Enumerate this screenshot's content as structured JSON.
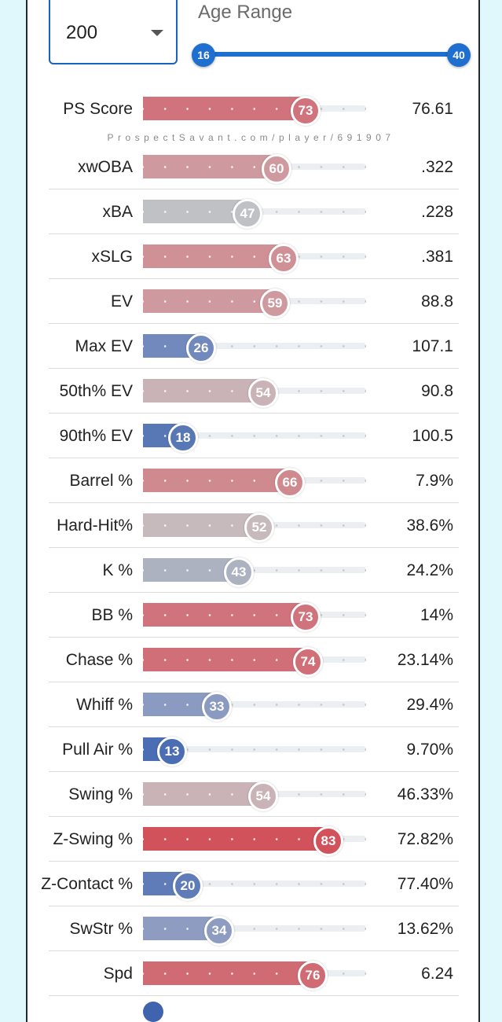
{
  "filter": {
    "selected": "200"
  },
  "age_range": {
    "label": "Age Range",
    "min": "16",
    "max": "40"
  },
  "watermark": "ProspectSavant.com/player/691907",
  "metrics": [
    {
      "label": "PS Score",
      "percentile": "73",
      "value": "76.61",
      "color": "#d0737c"
    },
    {
      "label": "xwOBA",
      "percentile": "60",
      "value": ".322",
      "color": "#cf9a9f"
    },
    {
      "label": "xBA",
      "percentile": "47",
      "value": ".228",
      "color": "#bfc1c5"
    },
    {
      "label": "xSLG",
      "percentile": "63",
      "value": ".381",
      "color": "#cf9195"
    },
    {
      "label": "EV",
      "percentile": "59",
      "value": "88.8",
      "color": "#cf9a9f"
    },
    {
      "label": "Max EV",
      "percentile": "26",
      "value": "107.1",
      "color": "#7189bd"
    },
    {
      "label": "50th% EV",
      "percentile": "54",
      "value": "90.8",
      "color": "#c9b3b6"
    },
    {
      "label": "90th% EV",
      "percentile": "18",
      "value": "100.5",
      "color": "#5877b5"
    },
    {
      "label": "Barrel %",
      "percentile": "66",
      "value": "7.9%",
      "color": "#cf8a8f"
    },
    {
      "label": "Hard-Hit%",
      "percentile": "52",
      "value": "38.6%",
      "color": "#c6babc"
    },
    {
      "label": "K %",
      "percentile": "43",
      "value": "24.2%",
      "color": "#acb2c0"
    },
    {
      "label": "BB %",
      "percentile": "73",
      "value": "14%",
      "color": "#d0737c"
    },
    {
      "label": "Chase %",
      "percentile": "74",
      "value": "23.14%",
      "color": "#d06f78"
    },
    {
      "label": "Whiff %",
      "percentile": "33",
      "value": "29.4%",
      "color": "#8a9ac0"
    },
    {
      "label": "Pull Air %",
      "percentile": "13",
      "value": "9.70%",
      "color": "#4a6db3"
    },
    {
      "label": "Swing %",
      "percentile": "54",
      "value": "46.33%",
      "color": "#c9b3b6"
    },
    {
      "label": "Z-Swing %",
      "percentile": "83",
      "value": "72.82%",
      "color": "#d2525c"
    },
    {
      "label": "Z-Contact %",
      "percentile": "20",
      "value": "77.40%",
      "color": "#5f7cb8"
    },
    {
      "label": "SwStr %",
      "percentile": "34",
      "value": "13.62%",
      "color": "#8d9cc0"
    },
    {
      "label": "Spd",
      "percentile": "76",
      "value": "6.24",
      "color": "#d06a73"
    }
  ]
}
